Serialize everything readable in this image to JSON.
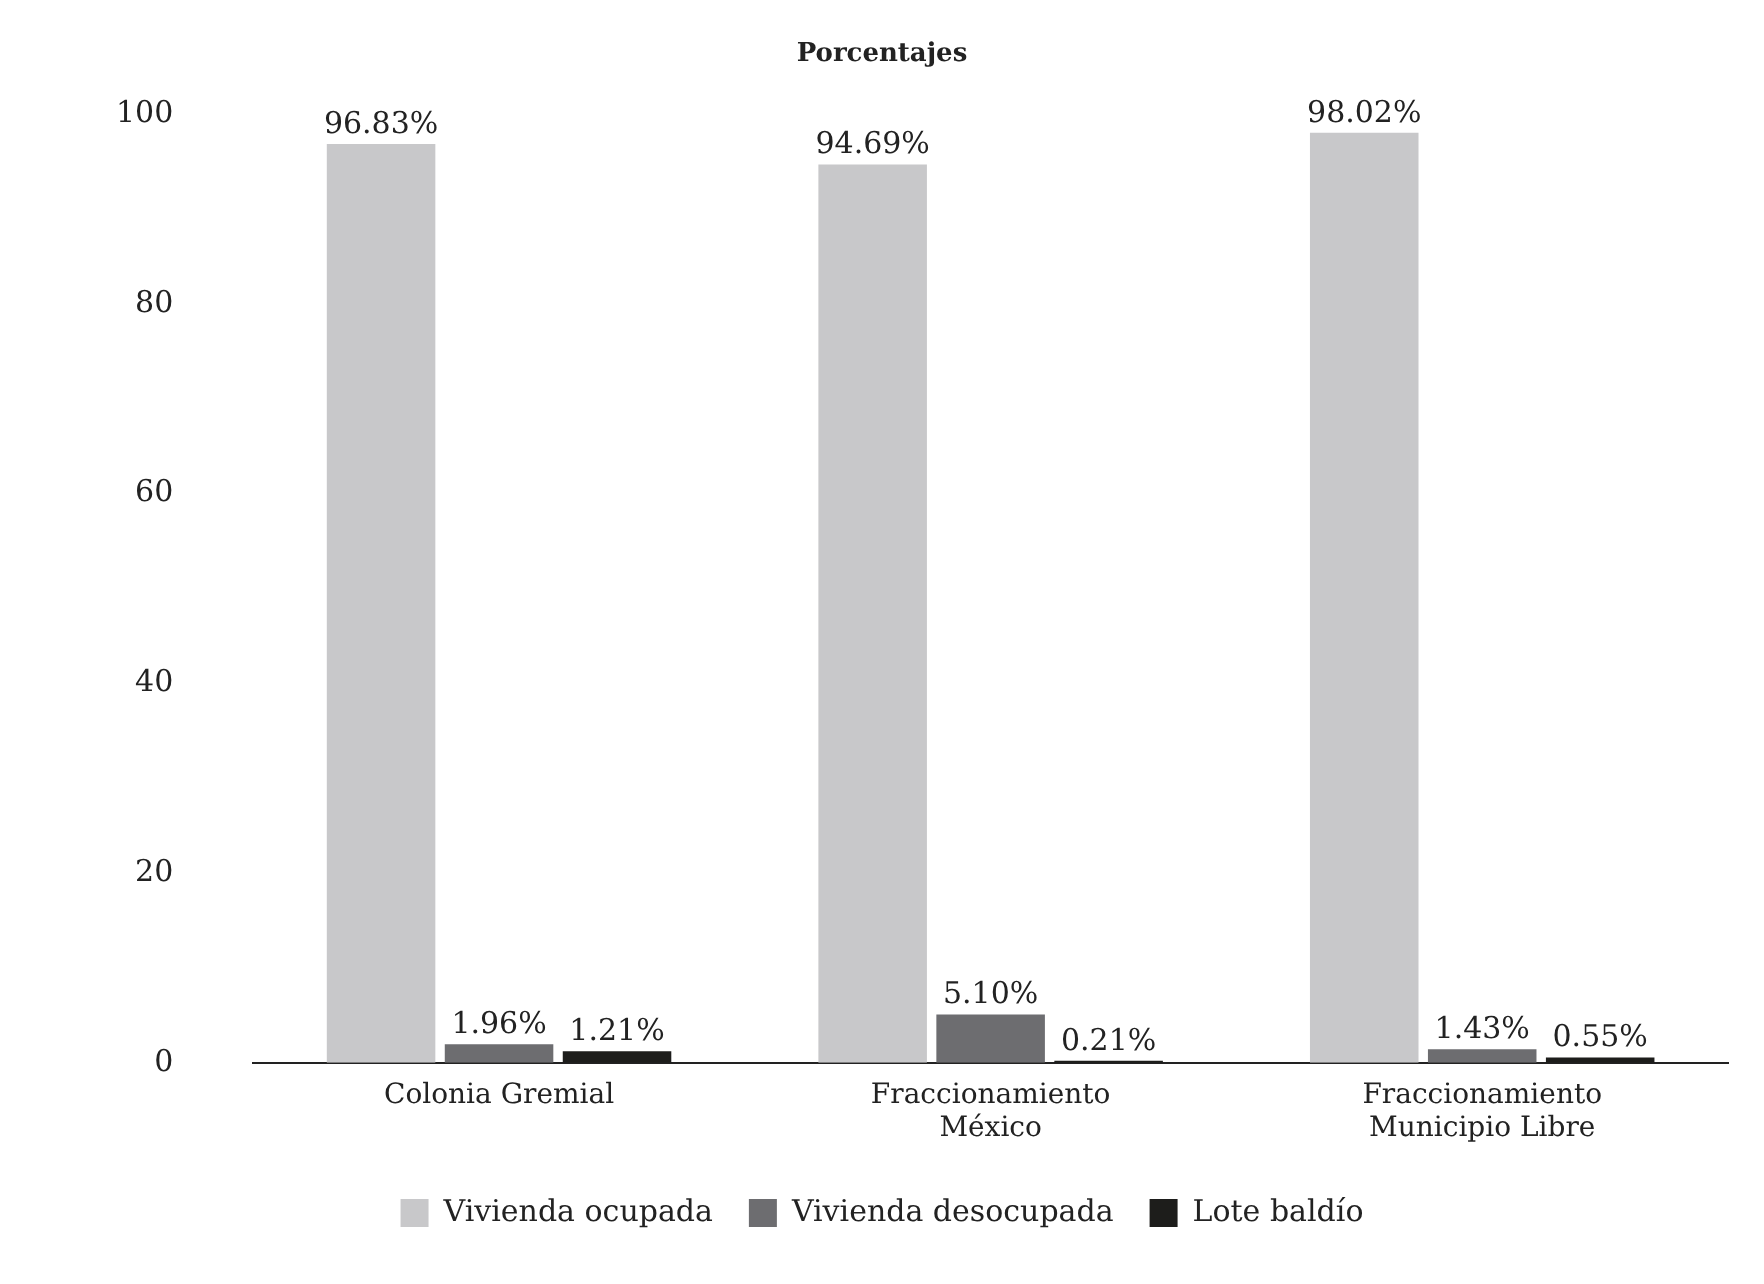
{
  "chart_data": {
    "type": "bar",
    "title": "Porcentajes",
    "categories": [
      "Colonia Gremial",
      "Fraccionamiento México",
      "Fraccionamiento Municipio Libre"
    ],
    "series": [
      {
        "name": "Vivienda ocupada",
        "color": "#c8c8ca",
        "values": [
          96.83,
          94.69,
          98.02
        ],
        "value_labels": [
          "96.83%",
          "94.69%",
          "98.02%"
        ]
      },
      {
        "name": "Vivienda desocupada",
        "color": "#6d6d70",
        "values": [
          1.96,
          5.1,
          1.43
        ],
        "value_labels": [
          "1.96%",
          "5.10%",
          "1.43%"
        ]
      },
      {
        "name": "Lote baldío",
        "color": "#1d1d1b",
        "values": [
          1.21,
          0.21,
          0.55
        ],
        "value_labels": [
          "1.21%",
          "0.21%",
          "0.55%"
        ]
      }
    ],
    "ylim": [
      0,
      100
    ],
    "yticks": [
      0,
      20,
      40,
      60,
      80,
      100
    ],
    "grid": false,
    "legend": "bottom"
  }
}
